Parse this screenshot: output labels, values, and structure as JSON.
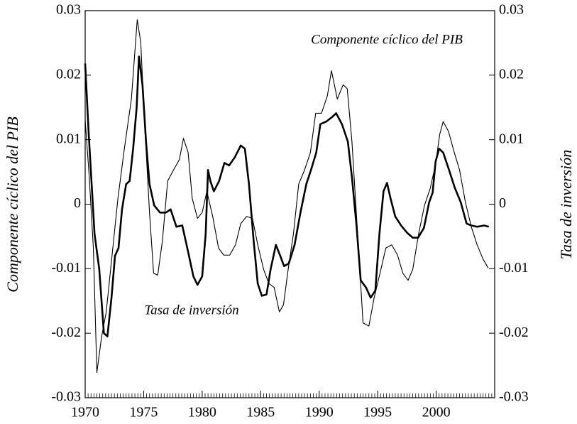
{
  "chart_data": {
    "type": "line",
    "ylabel": "Componente cíclico del PIB",
    "y2label": "Tasa de inversión",
    "xlim": [
      1970,
      2005
    ],
    "xticks": [
      1970,
      1975,
      1980,
      1985,
      1990,
      1995,
      2000
    ],
    "ylim": [
      -0.03,
      0.03
    ],
    "yticks": [
      -0.03,
      -0.02,
      -0.01,
      0,
      0.01,
      0.02,
      0.03
    ],
    "y2lim": [
      -0.03,
      0.03
    ],
    "y2ticks": [
      -0.03,
      -0.02,
      -0.01,
      0,
      0.01,
      0.02,
      0.03
    ],
    "series": [
      {
        "name": "Componente cíclico del PIB",
        "color": "#000000",
        "linewidth": 2.6,
        "x": [
          1970.0,
          1970.3,
          1970.8,
          1971.2,
          1971.6,
          1971.9,
          1972.25,
          1972.55,
          1972.85,
          1973.15,
          1973.5,
          1973.8,
          1974.1,
          1974.4,
          1974.6,
          1974.9,
          1975.2,
          1975.5,
          1975.9,
          1976.4,
          1976.9,
          1977.3,
          1977.8,
          1978.3,
          1978.8,
          1979.25,
          1979.6,
          1980.0,
          1980.3,
          1980.5,
          1980.7,
          1981.0,
          1981.45,
          1981.9,
          1982.3,
          1982.8,
          1983.3,
          1983.65,
          1984.0,
          1984.4,
          1984.75,
          1985.1,
          1985.5,
          1985.85,
          1986.3,
          1986.65,
          1987.0,
          1987.4,
          1987.9,
          1988.4,
          1988.9,
          1989.3,
          1989.75,
          1990.1,
          1990.6,
          1991.1,
          1991.45,
          1991.95,
          1992.45,
          1992.8,
          1993.2,
          1993.55,
          1994.0,
          1994.4,
          1994.8,
          1995.15,
          1995.5,
          1995.8,
          1996.1,
          1996.5,
          1997.0,
          1997.5,
          1998.0,
          1998.45,
          1998.95,
          1999.4,
          1999.7,
          1999.95,
          2000.25,
          2000.6,
          2001.1,
          2001.6,
          2002.1,
          2002.6,
          2003.0,
          2003.5,
          2004.1,
          2004.5
        ],
        "values": [
          0.0218,
          0.011,
          -0.0046,
          -0.01,
          -0.02,
          -0.0205,
          -0.0145,
          -0.008,
          -0.0068,
          -0.0008,
          0.0031,
          0.0036,
          0.0086,
          0.015,
          0.0229,
          0.0185,
          0.0097,
          0.0031,
          -0.0002,
          -0.0013,
          -0.0013,
          -0.0008,
          -0.0035,
          -0.0033,
          -0.0074,
          -0.0112,
          -0.0125,
          -0.0112,
          -0.0046,
          0.0053,
          0.0036,
          0.002,
          0.0036,
          0.0064,
          0.006,
          0.0073,
          0.0091,
          0.0086,
          0.0031,
          -0.0057,
          -0.0123,
          -0.0142,
          -0.014,
          -0.0101,
          -0.0063,
          -0.0079,
          -0.0096,
          -0.0092,
          -0.0063,
          -0.0013,
          0.0031,
          0.0053,
          0.008,
          0.0124,
          0.0128,
          0.0135,
          0.0141,
          0.0124,
          0.0097,
          0.0042,
          -0.0035,
          -0.0118,
          -0.0129,
          -0.0145,
          -0.0134,
          -0.0046,
          0.002,
          0.0033,
          0.0009,
          -0.0019,
          -0.0033,
          -0.0044,
          -0.0052,
          -0.0052,
          -0.0037,
          0.0003,
          0.0018,
          0.0066,
          0.0086,
          0.008,
          0.0053,
          0.0025,
          0.0003,
          -0.003,
          -0.0033,
          -0.0035,
          -0.0033,
          -0.0035
        ]
      },
      {
        "name": "Tasa de inversión",
        "color": "#000000",
        "linewidth": 1.1,
        "axis": "y2",
        "x": [
          1970.0,
          1970.35,
          1970.7,
          1971.0,
          1971.4,
          1971.8,
          1972.3,
          1972.8,
          1973.35,
          1973.95,
          1974.45,
          1974.75,
          1975.1,
          1975.5,
          1975.85,
          1976.2,
          1976.6,
          1977.05,
          1977.55,
          1978.05,
          1978.4,
          1978.8,
          1979.15,
          1979.6,
          1980.0,
          1980.4,
          1980.9,
          1981.4,
          1981.85,
          1982.35,
          1982.85,
          1983.3,
          1983.8,
          1984.3,
          1984.75,
          1985.25,
          1985.7,
          1986.15,
          1986.6,
          1986.95,
          1987.35,
          1987.8,
          1988.25,
          1988.75,
          1989.25,
          1989.7,
          1990.2,
          1990.7,
          1991.05,
          1991.55,
          1992.05,
          1992.4,
          1992.8,
          1993.25,
          1993.75,
          1994.25,
          1994.7,
          1995.2,
          1995.7,
          1996.2,
          1996.7,
          1997.15,
          1997.6,
          1998.0,
          1998.5,
          1999.0,
          1999.5,
          1999.95,
          2000.3,
          2000.6,
          2001.05,
          2001.55,
          2002.0,
          2002.5,
          2003.0,
          2003.5,
          2004.0,
          2004.45
        ],
        "values": [
          0.013,
          0.0042,
          -0.0068,
          -0.0261,
          -0.0206,
          -0.0167,
          -0.0079,
          0.0009,
          0.0086,
          0.0163,
          0.0286,
          0.0251,
          0.0119,
          -0.0013,
          -0.0107,
          -0.011,
          -0.0057,
          0.0036,
          0.0053,
          0.0069,
          0.0102,
          0.008,
          0.0009,
          -0.0022,
          -0.0013,
          0.002,
          -0.0019,
          -0.0068,
          -0.0079,
          -0.0079,
          -0.0063,
          -0.003,
          -0.0019,
          -0.0022,
          -0.0063,
          -0.0101,
          -0.0123,
          -0.0129,
          -0.0167,
          -0.0156,
          -0.0101,
          -0.0046,
          0.0031,
          0.0053,
          0.008,
          0.0141,
          0.0141,
          0.0168,
          0.0207,
          0.0163,
          0.0185,
          0.0179,
          0.0097,
          -0.0035,
          -0.0184,
          -0.0189,
          -0.0145,
          -0.0107,
          -0.0068,
          -0.0063,
          -0.0079,
          -0.0107,
          -0.0118,
          -0.0101,
          -0.0046,
          -0.0002,
          0.0025,
          0.0062,
          0.0108,
          0.0128,
          0.0113,
          0.008,
          0.0053,
          0.0003,
          -0.0035,
          -0.0063,
          -0.0085,
          -0.0099
        ]
      }
    ]
  }
}
